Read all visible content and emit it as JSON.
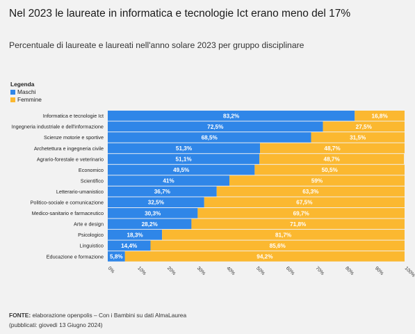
{
  "header": {
    "title": "Nel 2023 le laureate in informatica e tecnologie Ict erano meno del 17%",
    "subtitle": "Percentuale di laureate e laureati nell'anno solare 2023 per gruppo disciplinare"
  },
  "legend": {
    "title": "Legenda",
    "items": [
      {
        "label": "Maschi",
        "color": "#2f86e8"
      },
      {
        "label": "Femmine",
        "color": "#fbb830"
      }
    ]
  },
  "footer": {
    "source_label": "FONTE:",
    "source_text": "elaborazione openpolis – Con i Bambini su dati AlmaLaurea",
    "published": "(pubblicati: giovedì 13 Giugno 2024)"
  },
  "chart_data": {
    "type": "bar",
    "orientation": "horizontal",
    "stacked": true,
    "categories": [
      "Informatica e tecnologie Ict",
      "Ingegneria industriale e dell'informazione",
      "Scienze motorie e sportive",
      "Archetettura e ingegneria civile",
      "Agrario-forestale e veterinario",
      "Economico",
      "Scientifico",
      "Letterario-umanistico",
      "Politico-sociale e comunicazione",
      "Medico-sanitario e farmaceutico",
      "Arte e design",
      "Psicologico",
      "Linguistico",
      "Educazione e formazione"
    ],
    "series": [
      {
        "name": "Maschi",
        "color": "#2f86e8",
        "values": [
          83.2,
          72.5,
          68.5,
          51.3,
          51.1,
          49.5,
          41,
          36.7,
          32.5,
          30.3,
          28.2,
          18.3,
          14.4,
          5.8
        ],
        "labels": [
          "83,2%",
          "72,5%",
          "68,5%",
          "51,3%",
          "51,1%",
          "49,5%",
          "41%",
          "36,7%",
          "32,5%",
          "30,3%",
          "28,2%",
          "18,3%",
          "14,4%",
          "5,8%"
        ]
      },
      {
        "name": "Femmine",
        "color": "#fbb830",
        "values": [
          16.8,
          27.5,
          31.5,
          48.7,
          48.7,
          50.5,
          59,
          63.3,
          67.5,
          69.7,
          71.8,
          81.7,
          85.6,
          94.2
        ],
        "labels": [
          "16,8%",
          "27,5%",
          "31,5%",
          "48,7%",
          "48,7%",
          "50,5%",
          "59%",
          "63,3%",
          "67,5%",
          "69,7%",
          "71,8%",
          "81,7%",
          "85,6%",
          "94,2%"
        ]
      }
    ],
    "xlim": [
      0,
      100
    ],
    "xticks": [
      "0%",
      "10%",
      "20%",
      "30%",
      "40%",
      "50%",
      "60%",
      "70%",
      "80%",
      "90%",
      "100%"
    ],
    "grid": false
  }
}
